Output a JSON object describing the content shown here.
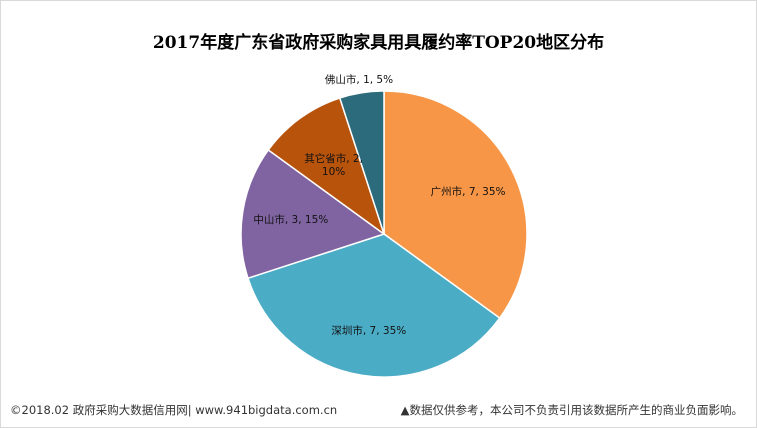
{
  "chart_data": {
    "type": "pie",
    "title": "2017年度广东省政府采购家具用具履约率TOP20地区分布",
    "slices": [
      {
        "name": "广州市",
        "value": 7,
        "percent": "35%",
        "label": "广州市, 7, 35%",
        "color": "#F79646"
      },
      {
        "name": "深圳市",
        "value": 7,
        "percent": "35%",
        "label": "深圳市, 7, 35%",
        "color": "#4BACC6"
      },
      {
        "name": "中山市",
        "value": 3,
        "percent": "15%",
        "label": "中山市, 3, 15%",
        "color": "#8064A2"
      },
      {
        "name": "其它省市",
        "value": 2,
        "percent": "10%",
        "label_lines": [
          "其它省市, 2,",
          "10%"
        ],
        "color": "#B7530B"
      },
      {
        "name": "佛山市",
        "value": 1,
        "percent": "5%",
        "label": "佛山市, 1, 5%",
        "color": "#2C6B7C"
      }
    ]
  },
  "footer": {
    "left": "©2018.02 政府采购大数据信用网| www.941bigdata.com.cn",
    "right": "▲数据仅供参考，本公司不负责引用该数据所产生的商业负面影响。"
  }
}
